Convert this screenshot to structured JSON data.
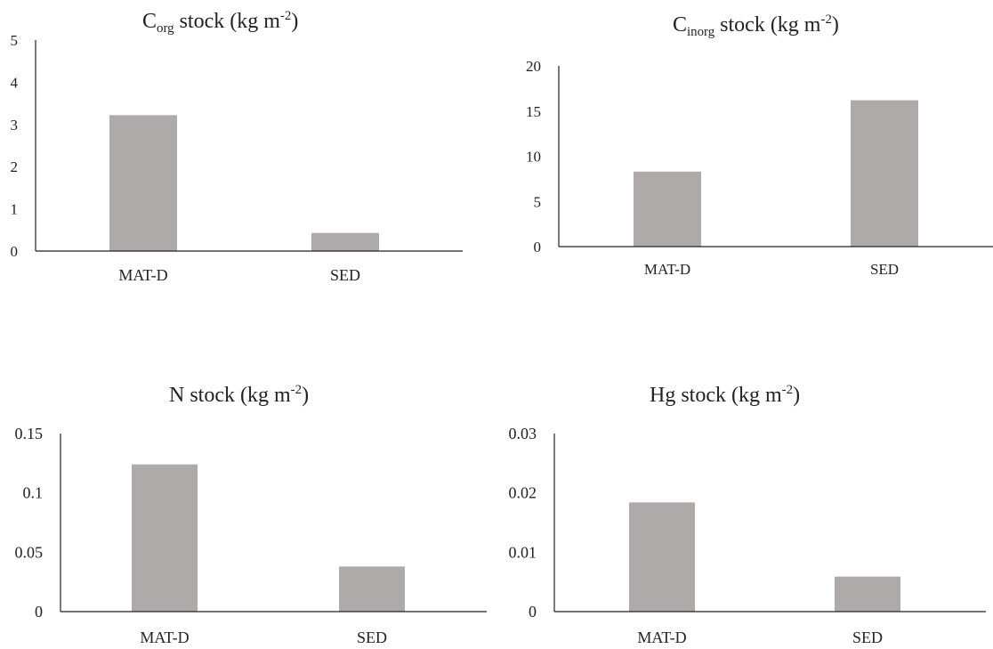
{
  "chart_data": [
    {
      "type": "bar",
      "title": {
        "base": "C",
        "sub": "org",
        "main": " stock (kg m",
        "sup": "-2",
        "end": ")"
      },
      "categories": [
        "MAT-D",
        "SED"
      ],
      "values": [
        3.22,
        0.43
      ],
      "ylim": [
        0,
        5
      ],
      "yticks": [
        0,
        1,
        2,
        3,
        4,
        5
      ],
      "ytick_labels": [
        "0",
        "1",
        "2",
        "3",
        "4",
        "5"
      ],
      "bar_color": "#aeaaaa",
      "grid": false
    },
    {
      "type": "bar",
      "title": {
        "base": "C",
        "sub": "inorg",
        "main": " stock (kg m",
        "sup": "-2",
        "end": ")"
      },
      "categories": [
        "MAT-D",
        "SED"
      ],
      "values": [
        8.3,
        16.2
      ],
      "ylim": [
        0,
        20
      ],
      "yticks": [
        0,
        5,
        10,
        15,
        20
      ],
      "ytick_labels": [
        "0",
        "5",
        "10",
        "15",
        "20"
      ],
      "bar_color": "#aeaaaa",
      "grid": false
    },
    {
      "type": "bar",
      "title": {
        "base": "N",
        "sub": "",
        "main": " stock (kg m",
        "sup": "-2",
        "end": ")"
      },
      "categories": [
        "MAT-D",
        "SED"
      ],
      "values": [
        0.124,
        0.038
      ],
      "ylim": [
        0,
        0.15
      ],
      "yticks": [
        0,
        0.05,
        0.1,
        0.15
      ],
      "ytick_labels": [
        "0",
        "0.05",
        "0.1",
        "0.15"
      ],
      "bar_color": "#aeaaaa",
      "grid": false
    },
    {
      "type": "bar",
      "title": {
        "base": "Hg",
        "sub": "",
        "main": " stock (kg m",
        "sup": "-2",
        "end": ")"
      },
      "categories": [
        "MAT-D",
        "SED"
      ],
      "values": [
        0.0184,
        0.0059
      ],
      "ylim": [
        0,
        0.03
      ],
      "yticks": [
        0,
        0.01,
        0.02,
        0.03
      ],
      "ytick_labels": [
        "0",
        "0.01",
        "0.02",
        "0.03"
      ],
      "bar_color": "#aeaaaa",
      "grid": false
    }
  ]
}
